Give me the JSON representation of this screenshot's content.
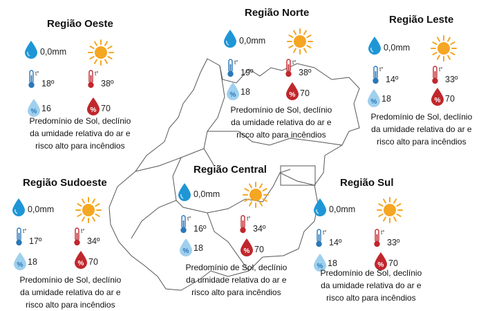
{
  "regions": [
    {
      "id": "oeste",
      "title": "Região Oeste",
      "precip": "0,0mm",
      "temp_min": "18º",
      "temp_max": "38º",
      "hum_min": "16",
      "hum_max": "70",
      "summary": [
        "Predomínio de Sol, declínio",
        "da umidade relativa do ar e",
        "risco alto para incêndios"
      ]
    },
    {
      "id": "norte",
      "title": "Região Norte",
      "precip": "0,0mm",
      "temp_min": "19º",
      "temp_max": "38º",
      "hum_min": "18",
      "hum_max": "70",
      "summary": [
        "Predomínio de Sol, declínio",
        "da umidade relativa do ar e",
        "risco alto para incêndios"
      ]
    },
    {
      "id": "leste",
      "title": "Região Leste",
      "precip": "0,0mm",
      "temp_min": "14º",
      "temp_max": "33º",
      "hum_min": "18",
      "hum_max": "70",
      "summary": [
        "Predomínio de Sol, declínio",
        "da umidade relativa do ar e",
        "risco alto para incêndios"
      ]
    },
    {
      "id": "sudoeste",
      "title": "Região Sudoeste",
      "precip": "0,0mm",
      "temp_min": "17º",
      "temp_max": "34º",
      "hum_min": "18",
      "hum_max": "70",
      "summary": [
        "Predomínio de Sol, declínio",
        "da umidade relativa do ar e",
        "risco alto para incêndios"
      ]
    },
    {
      "id": "central",
      "title": "Região Central",
      "precip": "0,0mm",
      "temp_min": "16º",
      "temp_max": "34º",
      "hum_min": "18",
      "hum_max": "70",
      "summary": [
        "Predomínio de Sol, declínio",
        "da umidade relativa do ar e",
        "risco alto para incêndios"
      ]
    },
    {
      "id": "sul",
      "title": "Região Sul",
      "precip": "0,0mm",
      "temp_min": "14º",
      "temp_max": "33º",
      "hum_min": "18",
      "hum_max": "70",
      "summary": [
        "Predomínio de Sol, declínio",
        "da umidade relativa do ar e",
        "risco alto para incêndios"
      ]
    }
  ],
  "icons": {
    "rain": "water-drop-icon",
    "sun": "sun-icon",
    "temp_min": "thermometer-cold-icon",
    "temp_max": "thermometer-hot-icon",
    "hum_min": "humidity-low-icon",
    "hum_max": "humidity-high-icon"
  },
  "thermo_symbol": "t°",
  "humidity_symbol": "%",
  "colors": {
    "drop": "#1e96d6",
    "sun": "#f5a623",
    "thermo_cold": "#2a78b8",
    "thermo_hot": "#c0272d",
    "hum_low": "#9fd0ee",
    "hum_high": "#c0272d",
    "map_line": "#555555"
  }
}
